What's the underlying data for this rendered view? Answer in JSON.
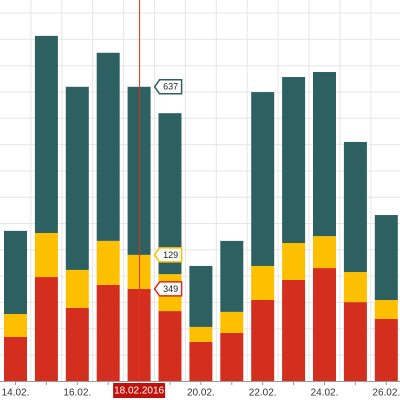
{
  "chart_data": {
    "type": "stacked_bar",
    "categories": [
      "14.02.",
      null,
      "16.02.",
      null,
      "18.02.2016",
      null,
      "20.02.",
      null,
      "22.02.",
      null,
      "24.02.",
      null,
      "26.02."
    ],
    "series": [
      {
        "name": null,
        "color": "#d42e1e",
        "values": [
          167,
          394,
          277,
          364,
          349,
          265,
          148,
          182,
          307,
          383,
          428,
          299,
          235
        ]
      },
      {
        "name": null,
        "color": "#fcc000",
        "values": [
          87,
          167,
          144,
          167,
          129,
          140,
          57,
          80,
          129,
          140,
          121,
          114,
          72
        ]
      },
      {
        "name": null,
        "color": "#2d6060",
        "values": [
          315,
          747,
          694,
          713,
          637,
          610,
          231,
          269,
          659,
          629,
          622,
          493,
          322
        ]
      }
    ],
    "ylim": [
      0,
      1444
    ]
  }
}
